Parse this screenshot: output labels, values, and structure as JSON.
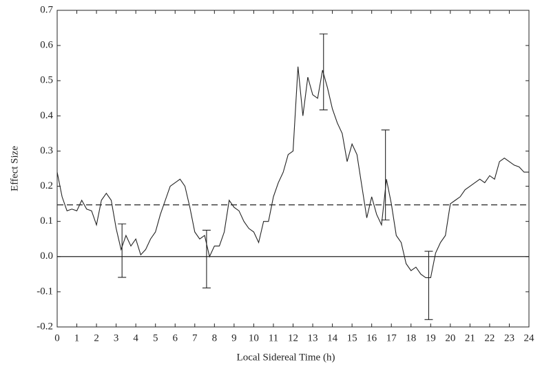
{
  "chart_data": {
    "type": "line",
    "xlabel": "Local Sidereal Time (h)",
    "ylabel": "Effect Size",
    "xlim": [
      0,
      24
    ],
    "ylim": [
      -0.2,
      0.7
    ],
    "xticks": [
      0,
      1,
      2,
      3,
      4,
      5,
      6,
      7,
      8,
      9,
      10,
      11,
      12,
      13,
      14,
      15,
      16,
      17,
      18,
      19,
      20,
      21,
      22,
      23,
      24
    ],
    "yticks": [
      -0.2,
      -0.1,
      {
        "value": 0,
        "label": "0.0"
      },
      0.1,
      0.2,
      0.3,
      0.4,
      0.5,
      0.6,
      0.7
    ],
    "series": [
      {
        "color": "#222222",
        "x": [
          0,
          0.25,
          0.5,
          0.75,
          1,
          1.25,
          1.5,
          1.75,
          2,
          2.25,
          2.5,
          2.75,
          3,
          3.25,
          3.5,
          3.75,
          4,
          4.25,
          4.5,
          4.75,
          5,
          5.25,
          5.5,
          5.75,
          6,
          6.25,
          6.5,
          6.75,
          7,
          7.25,
          7.5,
          7.75,
          8,
          8.25,
          8.5,
          8.75,
          9,
          9.25,
          9.5,
          9.75,
          10,
          10.25,
          10.5,
          10.75,
          11,
          11.25,
          11.5,
          11.75,
          12,
          12.25,
          12.5,
          12.75,
          13,
          13.25,
          13.5,
          13.75,
          14,
          14.25,
          14.5,
          14.75,
          15,
          15.25,
          15.5,
          15.75,
          16,
          16.25,
          16.5,
          16.75,
          17,
          17.25,
          17.5,
          17.75,
          18,
          18.25,
          18.5,
          18.75,
          19,
          19.25,
          19.5,
          19.75,
          20,
          20.25,
          20.5,
          20.75,
          21,
          21.25,
          21.5,
          21.75,
          22,
          22.25,
          22.5,
          22.75,
          23,
          23.25,
          23.5,
          23.75,
          24
        ],
        "values": [
          0.24,
          0.17,
          0.13,
          0.135,
          0.13,
          0.16,
          0.135,
          0.13,
          0.09,
          0.16,
          0.18,
          0.16,
          0.08,
          0.02,
          0.06,
          0.03,
          0.05,
          0.005,
          0.02,
          0.05,
          0.07,
          0.12,
          0.16,
          0.2,
          0.21,
          0.22,
          0.2,
          0.14,
          0.07,
          0.05,
          0.06,
          0.0,
          0.03,
          0.03,
          0.07,
          0.16,
          0.14,
          0.13,
          0.1,
          0.08,
          0.07,
          0.04,
          0.1,
          0.1,
          0.17,
          0.21,
          0.24,
          0.29,
          0.3,
          0.54,
          0.4,
          0.51,
          0.46,
          0.45,
          0.53,
          0.48,
          0.42,
          0.38,
          0.35,
          0.27,
          0.32,
          0.29,
          0.2,
          0.11,
          0.17,
          0.12,
          0.09,
          0.22,
          0.15,
          0.06,
          0.04,
          -0.02,
          -0.04,
          -0.03,
          -0.05,
          -0.06,
          -0.06,
          0.01,
          0.04,
          0.06,
          0.15,
          0.16,
          0.17,
          0.19,
          0.2,
          0.21,
          0.22,
          0.21,
          0.23,
          0.22,
          0.27,
          0.28,
          0.27,
          0.26,
          0.255,
          0.24,
          0.24
        ]
      }
    ],
    "error_bars": {
      "color": "#222222",
      "x": [
        3.3,
        7.6,
        13.55,
        16.7,
        18.9
      ],
      "values": [
        0.017,
        -0.007,
        0.525,
        0.232,
        -0.082
      ],
      "errors": [
        0.076,
        0.082,
        0.108,
        0.128,
        0.097
      ]
    },
    "reference_lines": [
      {
        "value": 0.147,
        "style": "dashed"
      },
      {
        "value": 0,
        "style": "solid"
      }
    ]
  }
}
